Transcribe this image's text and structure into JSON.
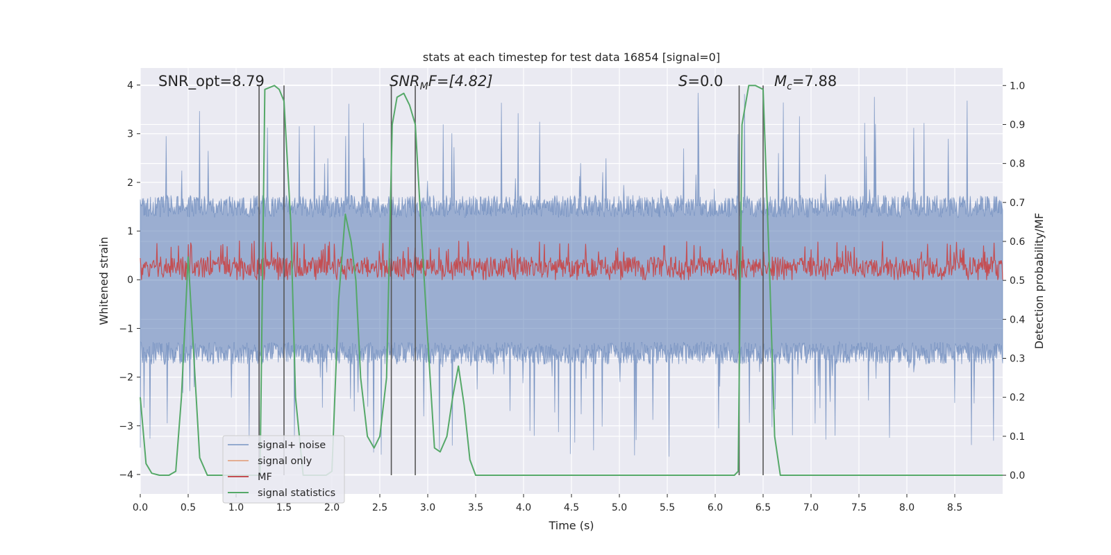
{
  "chart_data": {
    "type": "line",
    "title": "stats at each timestep for test data 16854 [signal=0]",
    "xlabel": "Time (s)",
    "ylabel": "Whitened strain",
    "ylabel_right": "Detection probability/MF",
    "xlim": [
      0.0,
      9.0
    ],
    "ylim": [
      -4.4,
      4.35
    ],
    "ylim_right": [
      -0.048,
      1.045
    ],
    "x_ticks": [
      "0.0",
      "0.5",
      "1.0",
      "1.5",
      "2.0",
      "2.5",
      "3.0",
      "3.5",
      "4.0",
      "4.5",
      "5.0",
      "5.5",
      "6.0",
      "6.5",
      "7.0",
      "7.5",
      "8.0",
      "8.5"
    ],
    "y_ticks": [
      "4",
      "3",
      "2",
      "1",
      "0",
      "−1",
      "−2",
      "−3",
      "−4"
    ],
    "y_right_ticks": [
      "1.0",
      "0.9",
      "0.8",
      "0.7",
      "0.6",
      "0.5",
      "0.4",
      "0.3",
      "0.2",
      "0.1",
      "0.0"
    ],
    "grid": true,
    "legend_position": "lower-left",
    "annotations": {
      "snr_opt": "SNR_opt=8.79",
      "snr_mf_italic": "SNR",
      "snr_mf_sub": "M",
      "snr_mf_rest": "F=[4.82]",
      "s_italic": "S",
      "s_rest": "=0.0",
      "mc_italic": "M",
      "mc_sub": "c",
      "mc_rest": "=7.88"
    },
    "vertical_lines_x": [
      1.24,
      1.5,
      2.62,
      2.87,
      6.25,
      6.5
    ],
    "series": [
      {
        "name": "signal+ noise",
        "color": "#4c72b0",
        "axis": "left",
        "kind": "noise band",
        "typical_abs_max": 1.6,
        "peak_abs_max": 3.9
      },
      {
        "name": "signal only",
        "color": "#dd8452",
        "axis": "left",
        "values": []
      },
      {
        "name": "MF",
        "color": "#c44e52",
        "axis": "left",
        "kind": "noise band",
        "range": [
          0.0,
          0.8
        ]
      },
      {
        "name": "signal statistics",
        "color": "#55a868",
        "axis": "right",
        "x": [
          0.0,
          0.06,
          0.12,
          0.2,
          0.3,
          0.37,
          0.43,
          0.5,
          0.56,
          0.62,
          0.7,
          0.8,
          0.9,
          1.0,
          1.1,
          1.2,
          1.25,
          1.3,
          1.4,
          1.45,
          1.5,
          1.57,
          1.62,
          1.7,
          1.78,
          1.86,
          1.94,
          2.0,
          2.07,
          2.14,
          2.2,
          2.25,
          2.3,
          2.37,
          2.44,
          2.5,
          2.57,
          2.63,
          2.68,
          2.75,
          2.81,
          2.87,
          2.94,
          3.0,
          3.07,
          3.13,
          3.2,
          3.26,
          3.32,
          3.38,
          3.44,
          3.5,
          3.56,
          3.62,
          4.0,
          5.0,
          6.0,
          6.2,
          6.24,
          6.28,
          6.35,
          6.42,
          6.5,
          6.57,
          6.62,
          6.68,
          7.0,
          8.0,
          9.0
        ],
        "values": [
          0.2,
          0.03,
          0.005,
          0.0,
          0.0,
          0.01,
          0.2,
          0.56,
          0.3,
          0.045,
          0.0,
          0.0,
          0.0,
          0.0,
          0.0,
          0.0,
          0.0,
          0.99,
          1.0,
          0.99,
          0.96,
          0.65,
          0.2,
          0.0,
          0.0,
          0.0,
          0.0,
          0.01,
          0.45,
          0.67,
          0.6,
          0.5,
          0.25,
          0.1,
          0.07,
          0.1,
          0.25,
          0.9,
          0.97,
          0.98,
          0.95,
          0.9,
          0.6,
          0.35,
          0.07,
          0.06,
          0.1,
          0.2,
          0.28,
          0.18,
          0.04,
          0.0,
          0.0,
          0.0,
          0.0,
          0.0,
          0.0,
          0.0,
          0.01,
          0.9,
          1.0,
          1.0,
          0.99,
          0.5,
          0.1,
          0.0,
          0.0,
          0.0,
          0.0
        ]
      }
    ]
  }
}
